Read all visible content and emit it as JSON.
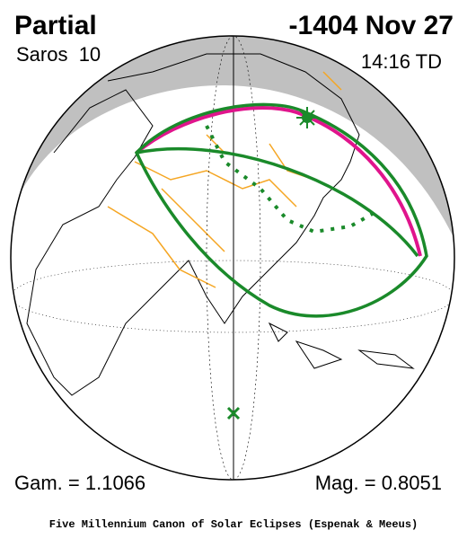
{
  "header": {
    "title": "Partial",
    "date": "-1404 Nov 27",
    "saros": "Saros  10",
    "time": "14:16 TD"
  },
  "footer": {
    "gamma": "Gam. = 1.1066",
    "magnitude": "Mag. = 0.8051",
    "credit": "Five Millennium Canon of Solar Eclipses (Espenak & Meeus)"
  }
}
